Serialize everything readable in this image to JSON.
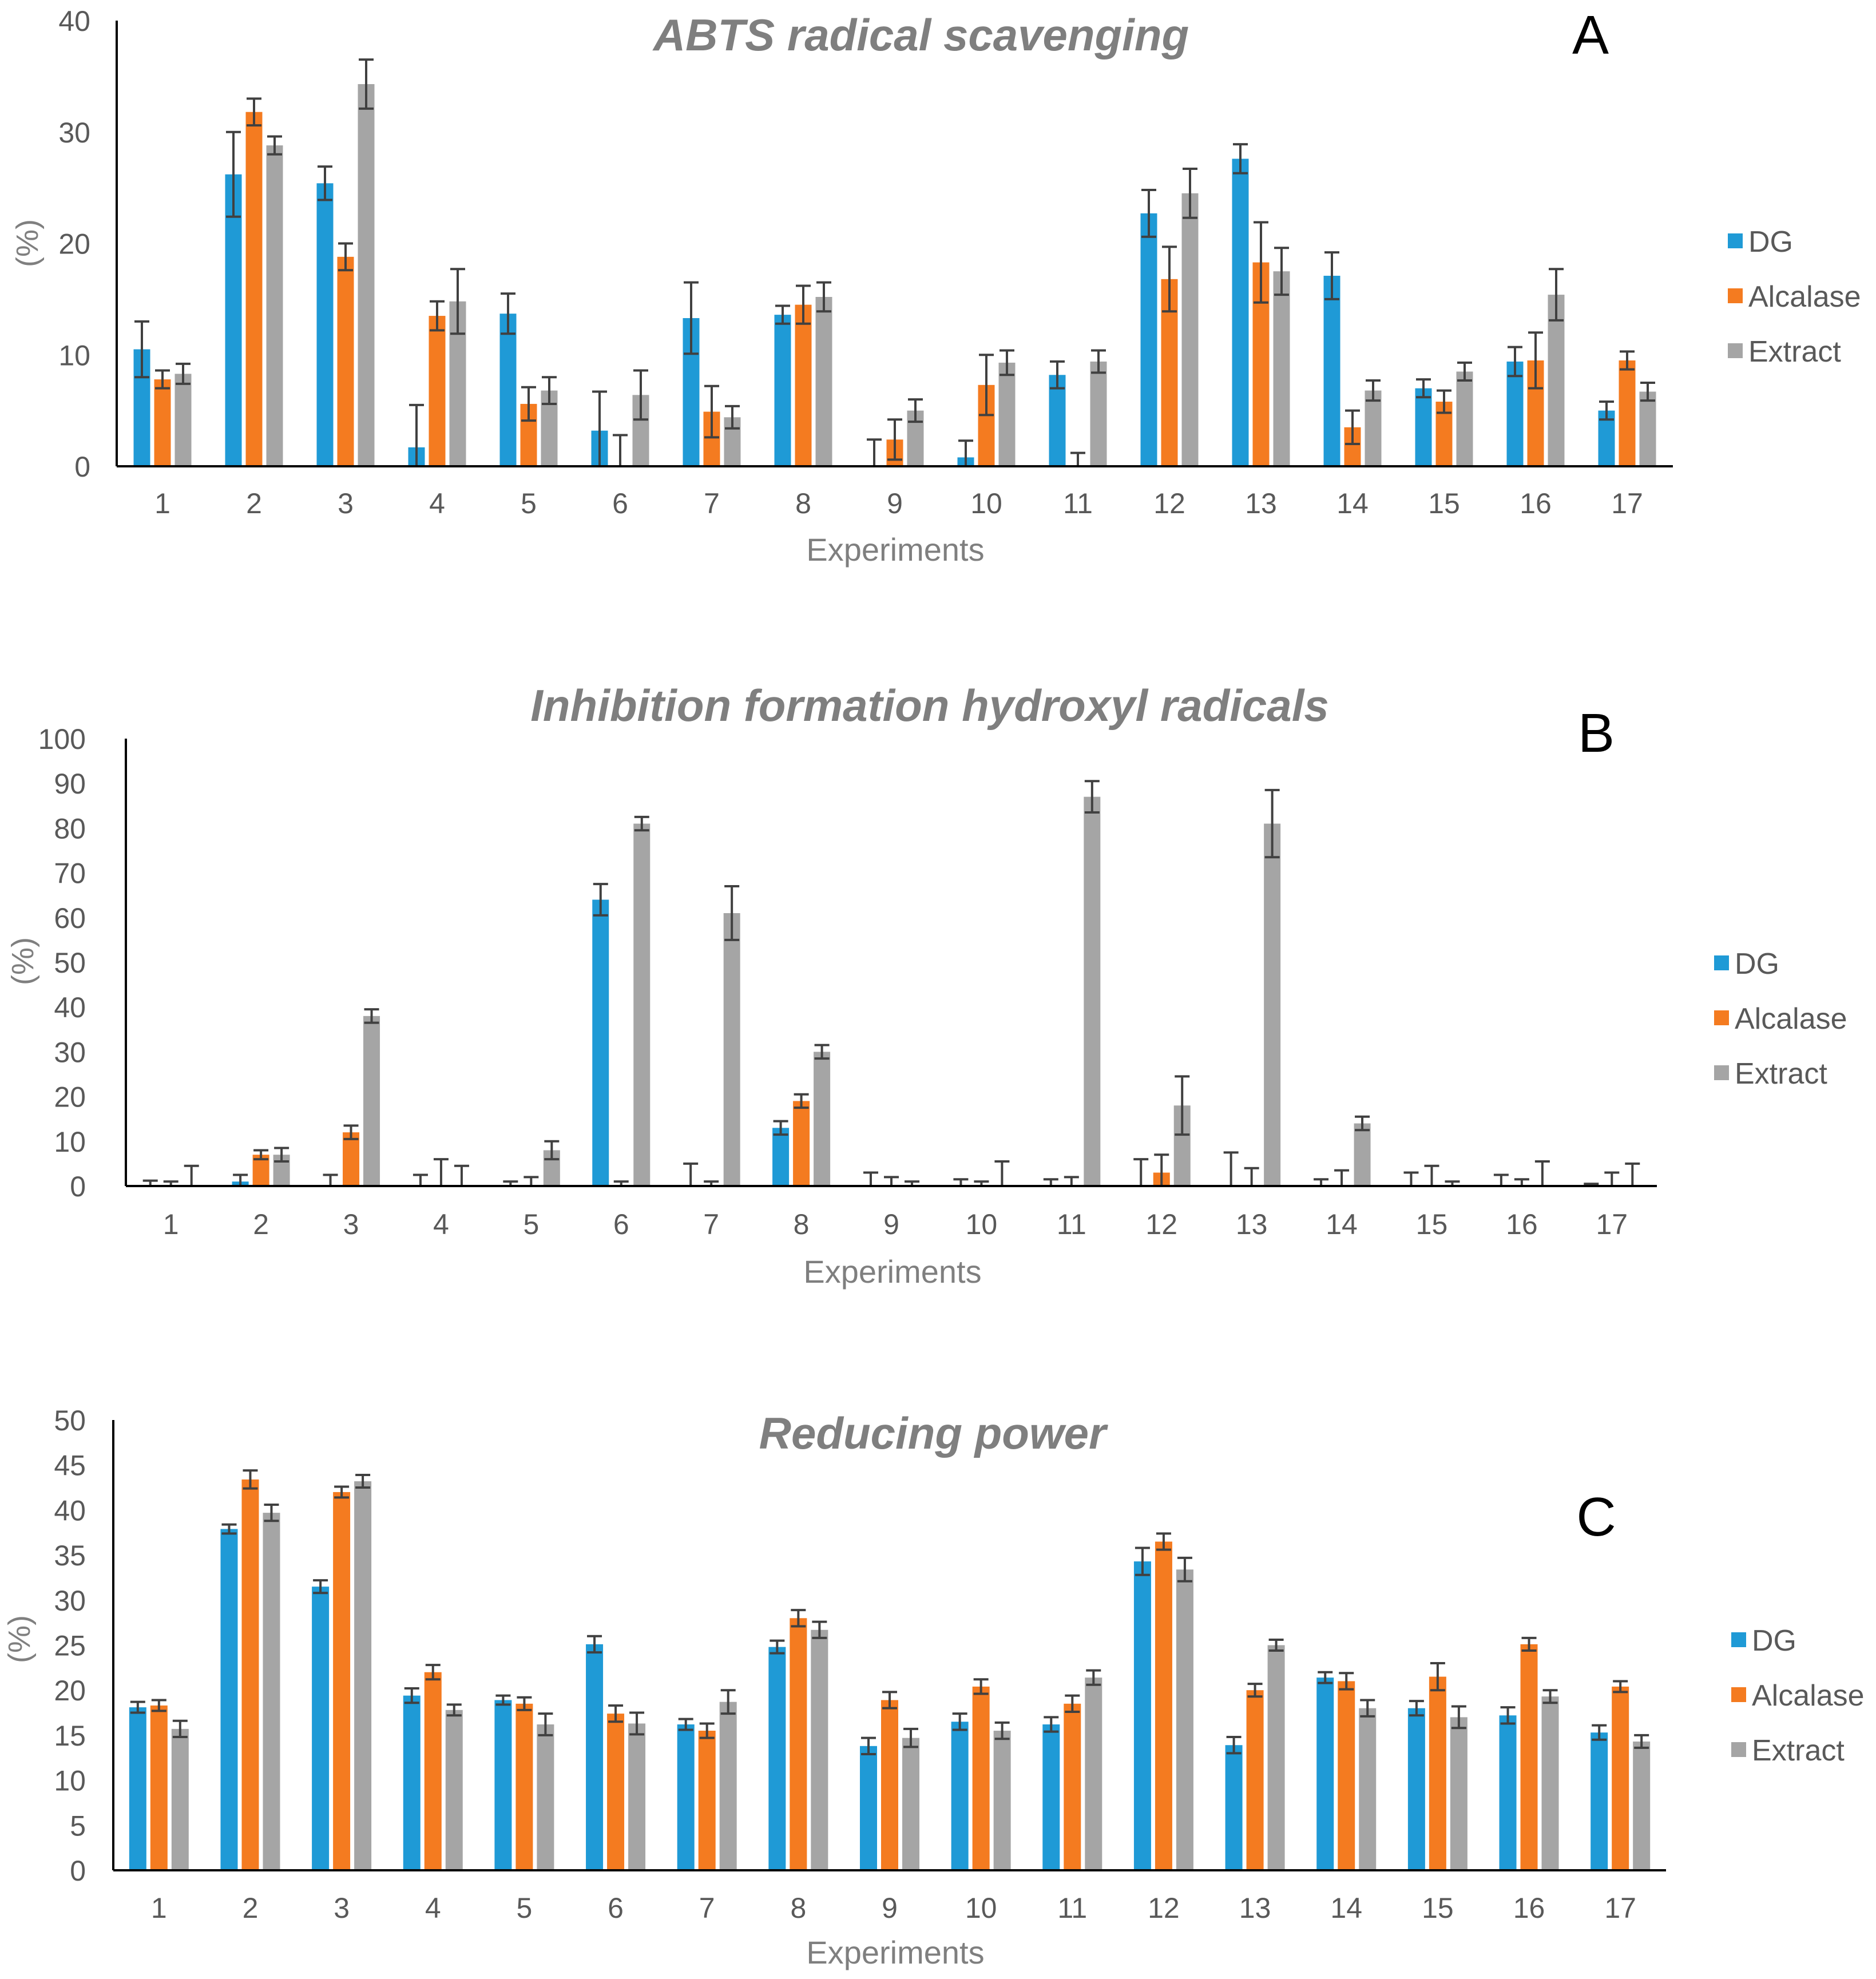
{
  "colors": {
    "DG": "#1f9ad6",
    "Alcalase": "#f47b20",
    "Extract": "#a5a5a5"
  },
  "chart_data": [
    {
      "type": "bar",
      "panel": "A",
      "title": "ABTS radical scavenging",
      "xlabel": "Experiments",
      "ylabel": "(%)",
      "ylim": [
        0,
        40
      ],
      "yticks": [
        0,
        10,
        20,
        30,
        40
      ],
      "categories": [
        "1",
        "2",
        "3",
        "4",
        "5",
        "6",
        "7",
        "8",
        "9",
        "10",
        "11",
        "12",
        "13",
        "14",
        "15",
        "16",
        "17"
      ],
      "series": [
        {
          "name": "DG",
          "values": [
            10.5,
            26.2,
            25.4,
            1.7,
            13.7,
            3.2,
            13.3,
            13.6,
            0,
            0.8,
            8.2,
            22.7,
            27.6,
            17.1,
            7.0,
            9.4,
            5.0
          ],
          "errors": [
            2.5,
            3.8,
            1.5,
            3.8,
            1.8,
            3.5,
            3.2,
            0.8,
            2.4,
            1.5,
            1.2,
            2.1,
            1.3,
            2.1,
            0.8,
            1.3,
            0.8
          ]
        },
        {
          "name": "Alcalase",
          "values": [
            7.8,
            31.8,
            18.8,
            13.5,
            5.6,
            0,
            4.9,
            14.5,
            2.4,
            7.3,
            0,
            16.8,
            18.3,
            3.5,
            5.8,
            9.5,
            9.5
          ],
          "errors": [
            0.8,
            1.2,
            1.2,
            1.3,
            1.5,
            2.8,
            2.3,
            1.7,
            1.8,
            2.7,
            1.2,
            2.9,
            3.6,
            1.5,
            1.0,
            2.5,
            0.8
          ]
        },
        {
          "name": "Extract",
          "values": [
            8.3,
            28.8,
            34.3,
            14.8,
            6.8,
            6.4,
            4.4,
            15.2,
            5.0,
            9.3,
            9.4,
            24.5,
            17.5,
            6.8,
            8.5,
            15.4,
            6.7
          ],
          "errors": [
            0.9,
            0.8,
            2.2,
            2.9,
            1.2,
            2.2,
            1.0,
            1.3,
            1.0,
            1.1,
            1.0,
            2.2,
            2.1,
            0.9,
            0.8,
            2.3,
            0.8
          ]
        }
      ]
    },
    {
      "type": "bar",
      "panel": "B",
      "title": "Inhibition formation hydroxyl radicals",
      "xlabel": "Experiments",
      "ylabel": "(%)",
      "ylim": [
        0,
        100
      ],
      "yticks": [
        0,
        10,
        20,
        30,
        40,
        50,
        60,
        70,
        80,
        90,
        100
      ],
      "categories": [
        "1",
        "2",
        "3",
        "4",
        "5",
        "6",
        "7",
        "8",
        "9",
        "10",
        "11",
        "12",
        "13",
        "14",
        "15",
        "16",
        "17"
      ],
      "series": [
        {
          "name": "DG",
          "values": [
            0,
            1,
            0,
            0,
            0,
            64,
            0,
            13,
            0,
            0,
            0,
            0,
            0,
            0,
            0,
            0,
            0
          ],
          "errors": [
            1.2,
            1.5,
            2.5,
            2.5,
            1.0,
            3.5,
            5.0,
            1.5,
            3.0,
            1.5,
            1.5,
            6.0,
            7.5,
            1.5,
            3.0,
            2.5,
            0.5
          ]
        },
        {
          "name": "Alcalase",
          "values": [
            0,
            7,
            12,
            0,
            0,
            0,
            0,
            19,
            0,
            0,
            0,
            3,
            0,
            0,
            0,
            0,
            0
          ],
          "errors": [
            1.0,
            1.0,
            1.5,
            6.0,
            2.0,
            1.0,
            1.0,
            1.5,
            2.0,
            1.0,
            2.0,
            4.0,
            4.0,
            3.5,
            4.5,
            1.5,
            3.0
          ]
        },
        {
          "name": "Extract",
          "values": [
            0,
            7,
            38,
            0,
            8,
            81,
            61,
            30,
            0,
            0,
            87,
            18,
            81,
            14,
            0,
            0,
            0
          ],
          "errors": [
            4.5,
            1.5,
            1.5,
            4.5,
            2.0,
            1.5,
            6.0,
            1.5,
            1.0,
            5.5,
            3.5,
            6.5,
            7.5,
            1.5,
            1.0,
            5.5,
            5.0
          ]
        }
      ]
    },
    {
      "type": "bar",
      "panel": "C",
      "title": "Reducing power",
      "xlabel": "Experiments",
      "ylabel": "(%)",
      "ylim": [
        0,
        50
      ],
      "yticks": [
        0,
        5,
        10,
        15,
        20,
        25,
        30,
        35,
        40,
        45,
        50
      ],
      "categories": [
        "1",
        "2",
        "3",
        "4",
        "5",
        "6",
        "7",
        "8",
        "9",
        "10",
        "11",
        "12",
        "13",
        "14",
        "15",
        "16",
        "17"
      ],
      "series": [
        {
          "name": "DG",
          "values": [
            18.1,
            37.9,
            31.5,
            19.4,
            18.9,
            25.1,
            16.2,
            24.8,
            13.8,
            16.5,
            16.2,
            34.3,
            13.9,
            21.4,
            18.0,
            17.2,
            15.3
          ],
          "errors": [
            0.6,
            0.5,
            0.7,
            0.8,
            0.5,
            0.9,
            0.6,
            0.7,
            0.9,
            0.9,
            0.8,
            1.5,
            0.9,
            0.6,
            0.8,
            0.9,
            0.8
          ]
        },
        {
          "name": "Alcalase",
          "values": [
            18.3,
            43.4,
            42.0,
            22.0,
            18.5,
            17.4,
            15.5,
            28.0,
            18.9,
            20.4,
            18.5,
            36.5,
            20.0,
            21.0,
            21.5,
            25.1,
            20.4
          ],
          "errors": [
            0.6,
            1.0,
            0.6,
            0.8,
            0.7,
            0.9,
            0.8,
            0.9,
            0.9,
            0.8,
            0.9,
            0.9,
            0.7,
            0.9,
            1.5,
            0.7,
            0.6
          ]
        },
        {
          "name": "Extract",
          "values": [
            15.7,
            39.7,
            43.2,
            17.8,
            16.2,
            16.3,
            18.7,
            26.7,
            14.7,
            15.5,
            21.4,
            33.4,
            25.0,
            18.0,
            17.0,
            19.3,
            14.3
          ],
          "errors": [
            0.9,
            0.9,
            0.7,
            0.6,
            1.2,
            1.2,
            1.3,
            0.9,
            1.0,
            0.9,
            0.8,
            1.3,
            0.6,
            0.9,
            1.2,
            0.7,
            0.7
          ]
        }
      ]
    }
  ]
}
